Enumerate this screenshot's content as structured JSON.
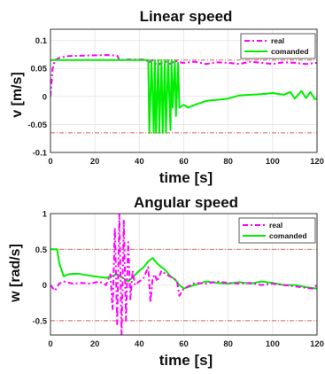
{
  "chart_data": [
    {
      "type": "line",
      "title": "Linear speed",
      "xlabel": "time [s]",
      "ylabel": "v [m/s]",
      "xlim": [
        0,
        120
      ],
      "ylim": [
        -0.1,
        0.12
      ],
      "xticks": [
        "0",
        "20",
        "40",
        "60",
        "80",
        "100",
        "120"
      ],
      "yticks": [
        "-0.1",
        "-0.05",
        "0",
        "0.05",
        "0.1"
      ],
      "ytick_values": [
        -0.1,
        -0.05,
        0,
        0.05,
        0.1
      ],
      "xtick_values": [
        0,
        20,
        40,
        60,
        80,
        100,
        120
      ],
      "limits": [
        0.065,
        -0.065
      ],
      "legend": "top-right",
      "grid": true,
      "series": [
        {
          "name": "real",
          "color": "#ff00ff",
          "style": "dash-dot",
          "x": [
            0,
            1,
            2,
            4,
            8,
            15,
            25,
            30,
            31,
            35,
            40,
            43,
            44,
            46,
            48,
            50,
            52,
            54,
            56,
            58,
            60,
            65,
            70,
            75,
            80,
            85,
            90,
            95,
            100,
            105,
            110,
            115,
            120
          ],
          "y": [
            0.0,
            0.05,
            0.065,
            0.069,
            0.072,
            0.073,
            0.074,
            0.073,
            0.065,
            0.066,
            0.066,
            0.066,
            0.06,
            0.065,
            0.055,
            0.06,
            0.062,
            0.058,
            0.064,
            0.061,
            0.06,
            0.062,
            0.058,
            0.061,
            0.06,
            0.058,
            0.062,
            0.06,
            0.058,
            0.061,
            0.06,
            0.058,
            0.06
          ]
        },
        {
          "name": "comanded",
          "color": "#00ee00",
          "style": "solid",
          "x": [
            0,
            44,
            44.5,
            45.5,
            46.5,
            47,
            47.5,
            48.5,
            49,
            50,
            50.5,
            51.5,
            52,
            53,
            54,
            54.5,
            55,
            56,
            56.5,
            57.5,
            58,
            60,
            62,
            65,
            70,
            75,
            80,
            85,
            90,
            95,
            100,
            105,
            108,
            110,
            113,
            115,
            117,
            119,
            120
          ],
          "y": [
            0.065,
            0.065,
            -0.065,
            0.065,
            -0.065,
            0.065,
            -0.065,
            0.065,
            -0.065,
            0.065,
            -0.065,
            0.065,
            -0.065,
            0.065,
            -0.06,
            0.065,
            -0.02,
            0.065,
            -0.035,
            0.06,
            -0.02,
            -0.015,
            -0.02,
            -0.015,
            -0.008,
            -0.006,
            -0.004,
            0.002,
            0.003,
            0.004,
            0.006,
            0.003,
            0.008,
            -0.004,
            0.01,
            -0.003,
            0.008,
            -0.005,
            -0.003
          ]
        }
      ]
    },
    {
      "type": "line",
      "title": "Angular speed",
      "xlabel": "time [s]",
      "ylabel": "w [rad/s]",
      "xlim": [
        0,
        120
      ],
      "ylim": [
        -0.7,
        1.0
      ],
      "xticks": [
        "0",
        "20",
        "40",
        "60",
        "80",
        "100",
        "120"
      ],
      "yticks": [
        "-0.5",
        "0",
        "0.5",
        "1"
      ],
      "ytick_values": [
        -0.5,
        0,
        0.5,
        1
      ],
      "xtick_values": [
        0,
        20,
        40,
        60,
        80,
        100,
        120
      ],
      "limits": [
        0.5,
        -0.5
      ],
      "legend": "top-right",
      "grid": true,
      "series": [
        {
          "name": "real",
          "color": "#ff00ff",
          "style": "dash-dot",
          "x": [
            0,
            2,
            4,
            6,
            10,
            14,
            18,
            22,
            25,
            27,
            28,
            29,
            30,
            31,
            32,
            33,
            34,
            35,
            36,
            37,
            38,
            40,
            42,
            44,
            45,
            46,
            47,
            48,
            50,
            52,
            55,
            57,
            58,
            60,
            62,
            65,
            70,
            75,
            80,
            85,
            90,
            95,
            100,
            105,
            110,
            115,
            118,
            120
          ],
          "y": [
            0.0,
            -0.08,
            0.02,
            0.05,
            0.02,
            0.03,
            0.02,
            0.05,
            0.0,
            0.15,
            -0.35,
            0.8,
            -0.55,
            1.0,
            -0.7,
            0.9,
            -0.5,
            0.6,
            -0.2,
            0.2,
            0.0,
            0.05,
            0.1,
            0.25,
            -0.25,
            0.1,
            0.15,
            0.05,
            0.2,
            0.15,
            0.1,
            0.05,
            -0.15,
            -0.05,
            -0.02,
            0.03,
            0.02,
            0.05,
            0.03,
            0.02,
            0.03,
            0.0,
            0.02,
            0.0,
            -0.02,
            -0.04,
            -0.05,
            0.0
          ]
        },
        {
          "name": "comanded",
          "color": "#00ee00",
          "style": "solid",
          "x": [
            0,
            3,
            4,
            6,
            8,
            12,
            16,
            20,
            25,
            30,
            35,
            40,
            42,
            44,
            46,
            48,
            50,
            52,
            54,
            56,
            58,
            60,
            65,
            70,
            75,
            80,
            85,
            90,
            95,
            100,
            105,
            110,
            115,
            120
          ],
          "y": [
            0.5,
            0.5,
            0.3,
            0.12,
            0.15,
            0.16,
            0.14,
            0.12,
            0.1,
            0.15,
            0.05,
            0.2,
            0.25,
            0.33,
            0.38,
            0.3,
            0.25,
            0.2,
            0.12,
            0.08,
            0.0,
            -0.05,
            0.0,
            0.05,
            0.03,
            0.02,
            0.04,
            0.02,
            0.05,
            0.03,
            0.0,
            0.0,
            -0.03,
            -0.05
          ]
        }
      ]
    }
  ]
}
